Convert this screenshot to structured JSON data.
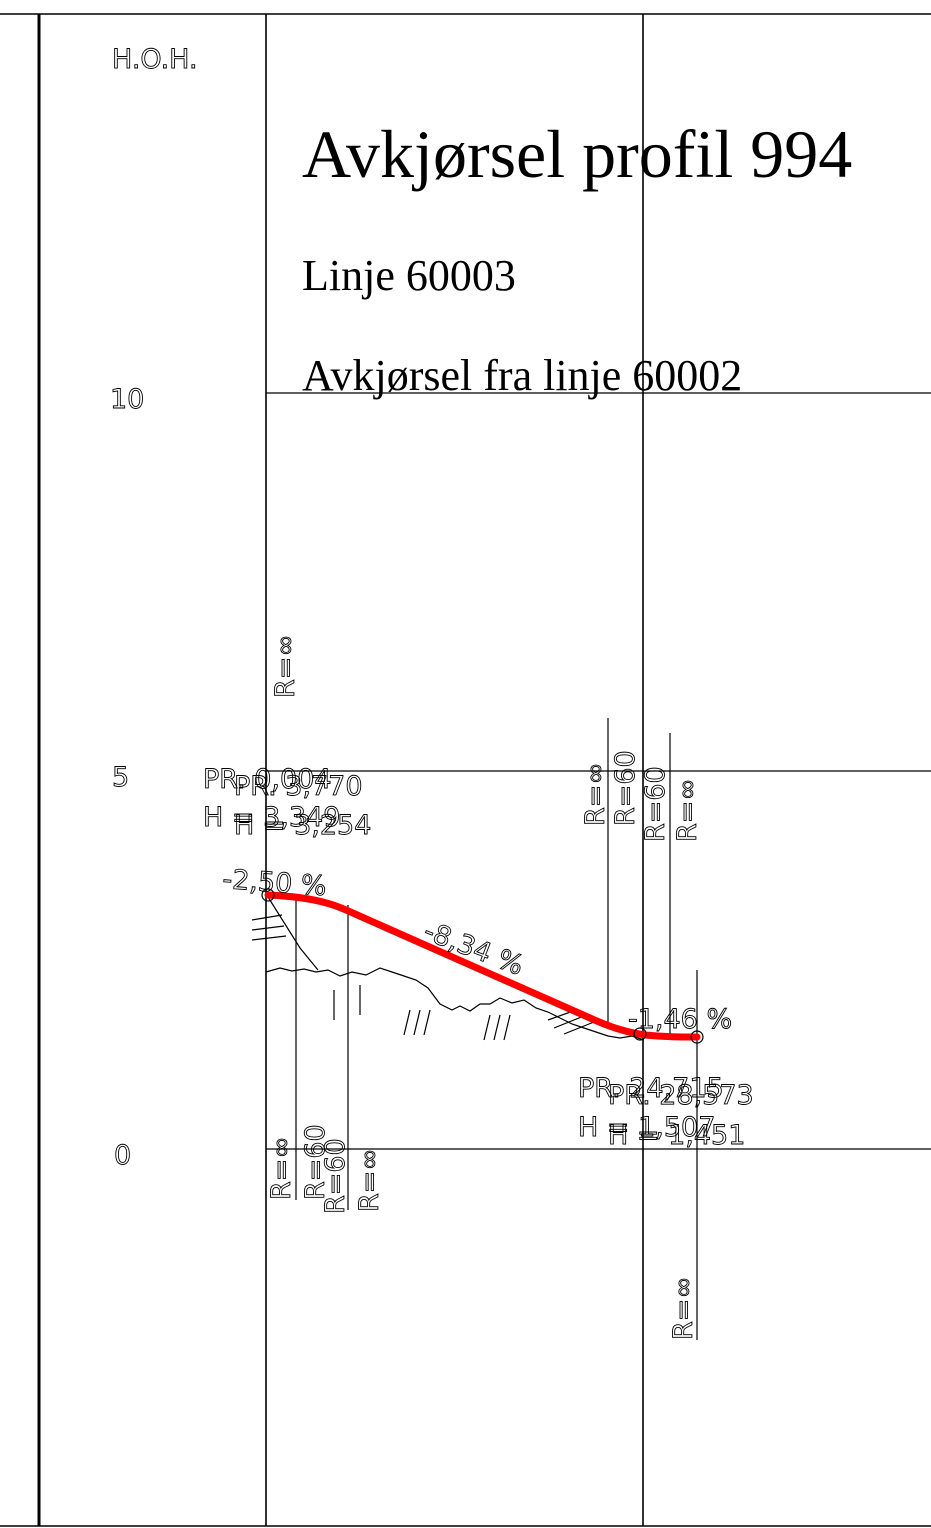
{
  "axis": {
    "label": "H.O.H.",
    "ticks": [
      {
        "value": 10,
        "label": "10"
      },
      {
        "value": 5,
        "label": "5"
      },
      {
        "value": 0,
        "label": "0"
      }
    ]
  },
  "titles": {
    "main": "Avkjørsel profil 994",
    "line": "Linje 60003",
    "from": "Avkjørsel fra linje 60002"
  },
  "pr_start": {
    "pr_a": "PR. 0,004",
    "pr_b": "PR. 3,770",
    "h_a": "H = 3,349",
    "h_b": "H = 3,254"
  },
  "pr_end": {
    "pr_a": "PR. 24,715",
    "pr_b": "PR. 28,573",
    "h_a": "H = 1,507",
    "h_b": "H = 1,451"
  },
  "grades": {
    "g1": "-2,50 %",
    "g2": "-8,34 %",
    "g3": "-1,46 %"
  },
  "radii": {
    "r_start_top": "R=∞",
    "r_top_1": "R=∞",
    "r_top_2": "R=60",
    "r_top_3": "R=60",
    "r_top_4": "R=∞",
    "r_bot_1": "R=∞",
    "r_bot_2": "R=60",
    "r_bot_3": "R=60",
    "r_bot_4": "R=∞",
    "r_end_low": "R=∞"
  },
  "colors": {
    "profile_line": "#ff0000",
    "lines": "#000000"
  }
}
